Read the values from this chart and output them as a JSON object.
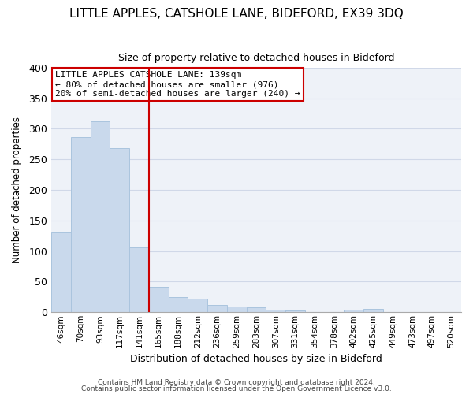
{
  "title": "LITTLE APPLES, CATSHOLE LANE, BIDEFORD, EX39 3DQ",
  "subtitle": "Size of property relative to detached houses in Bideford",
  "xlabel": "Distribution of detached houses by size in Bideford",
  "ylabel": "Number of detached properties",
  "bar_labels": [
    "46sqm",
    "70sqm",
    "93sqm",
    "117sqm",
    "141sqm",
    "165sqm",
    "188sqm",
    "212sqm",
    "236sqm",
    "259sqm",
    "283sqm",
    "307sqm",
    "331sqm",
    "354sqm",
    "378sqm",
    "402sqm",
    "425sqm",
    "449sqm",
    "473sqm",
    "497sqm",
    "520sqm"
  ],
  "bar_values": [
    130,
    287,
    312,
    268,
    106,
    41,
    25,
    22,
    12,
    9,
    8,
    4,
    3,
    0,
    0,
    4,
    5,
    0,
    0,
    0,
    0
  ],
  "bar_color": "#c9d9ec",
  "bar_edgecolor": "#aac4de",
  "marker_index": 4,
  "marker_color": "#cc0000",
  "ylim": [
    0,
    400
  ],
  "yticks": [
    0,
    50,
    100,
    150,
    200,
    250,
    300,
    350,
    400
  ],
  "annotation_line1": "LITTLE APPLES CATSHOLE LANE: 139sqm",
  "annotation_line2": "← 80% of detached houses are smaller (976)",
  "annotation_line3": "20% of semi-detached houses are larger (240) →",
  "footer_line1": "Contains HM Land Registry data © Crown copyright and database right 2024.",
  "footer_line2": "Contains public sector information licensed under the Open Government Licence v3.0.",
  "bg_color": "#eef2f8",
  "grid_color": "#d0d8e8"
}
